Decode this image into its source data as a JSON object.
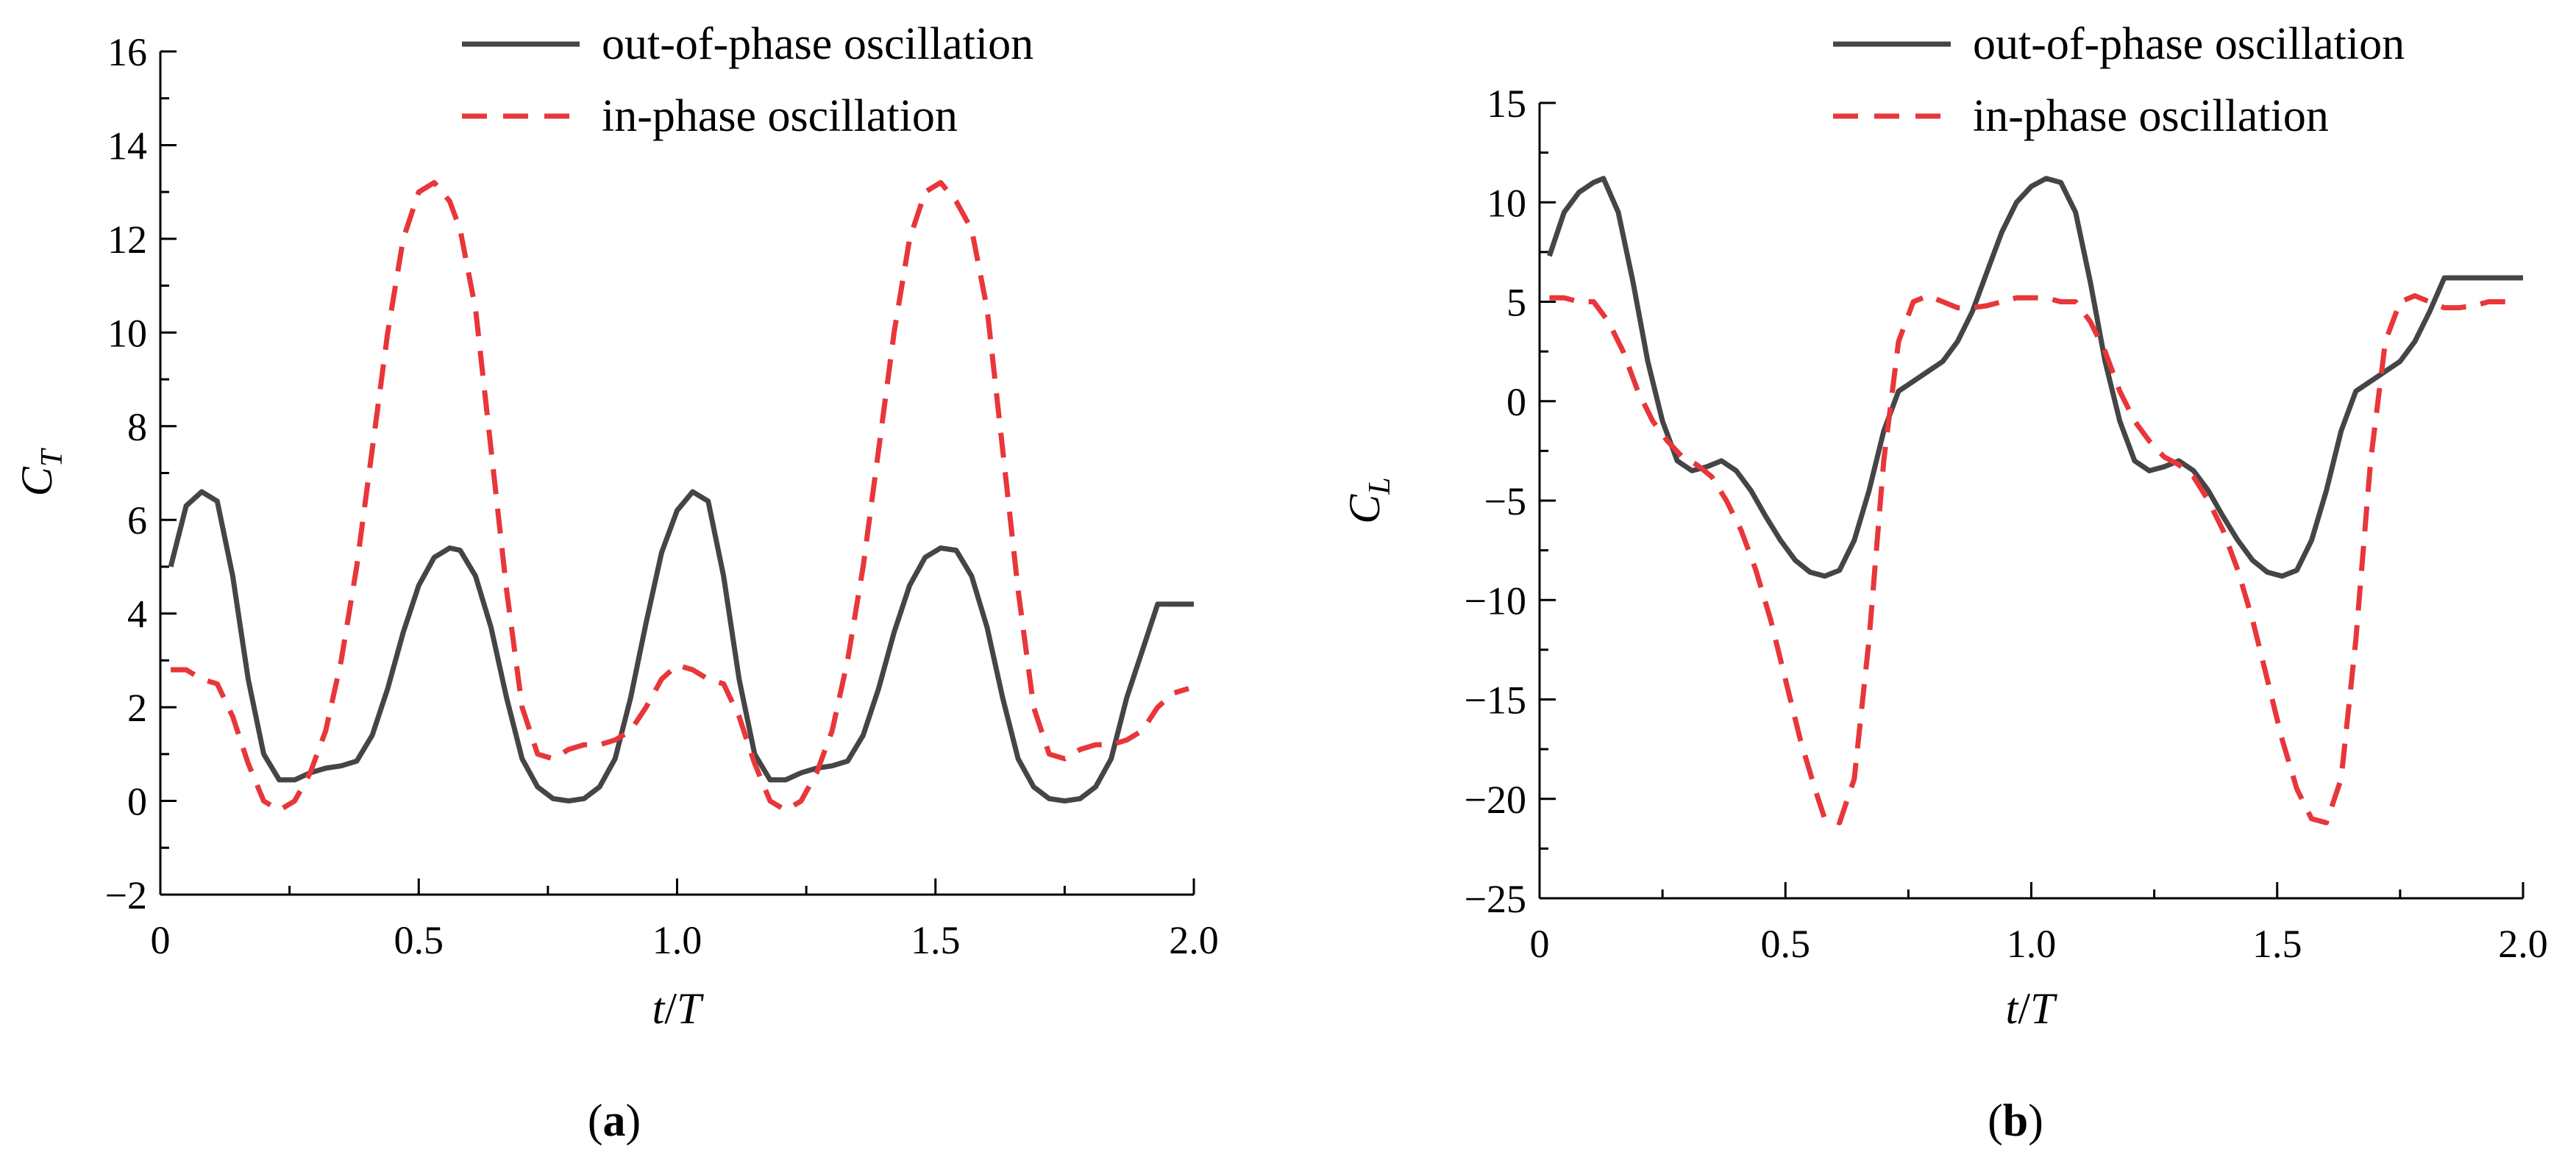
{
  "colors": {
    "out_of_phase": "#454545",
    "in_phase": "#e8363a",
    "axis": "#000000"
  },
  "chart_data": [
    {
      "type": "line",
      "panel": "a",
      "caption_paren_open": "(",
      "caption_letter": "a",
      "caption_paren_close": ")",
      "ylabel_main": "C",
      "ylabel_sub": "T",
      "xlabel_italic_1": "t",
      "xlabel_slash": "/",
      "xlabel_italic_2": "T",
      "xlim": [
        0,
        2.0
      ],
      "ylim": [
        -2,
        16
      ],
      "xticks": [
        0,
        0.5,
        1.0,
        1.5,
        2.0
      ],
      "xtick_labels": [
        "0",
        "0.5",
        "1.0",
        "1.5",
        "2.0"
      ],
      "yticks": [
        -2,
        0,
        2,
        4,
        6,
        8,
        10,
        12,
        14,
        16
      ],
      "ytick_labels": [
        "−2",
        "0",
        "2",
        "4",
        "6",
        "8",
        "10",
        "12",
        "14",
        "16"
      ],
      "legend_position": "top-right",
      "series": [
        {
          "name": "out-of-phase oscillation",
          "style": "solid",
          "x": [
            0.02,
            0.05,
            0.08,
            0.11,
            0.14,
            0.17,
            0.2,
            0.23,
            0.26,
            0.29,
            0.32,
            0.35,
            0.38,
            0.41,
            0.44,
            0.47,
            0.5,
            0.53,
            0.56,
            0.58,
            0.61,
            0.64,
            0.67,
            0.7,
            0.73,
            0.76,
            0.79,
            0.82,
            0.85,
            0.88,
            0.91,
            0.94,
            0.97,
            1.0,
            1.03,
            1.06,
            1.09,
            1.12,
            1.15,
            1.18,
            1.21,
            1.24,
            1.27,
            1.3,
            1.33,
            1.36,
            1.39,
            1.42,
            1.45,
            1.48,
            1.51,
            1.54,
            1.57,
            1.6,
            1.63,
            1.66,
            1.69,
            1.72,
            1.75,
            1.78,
            1.81,
            1.84,
            1.87,
            1.9,
            1.93,
            1.96,
            2.0
          ],
          "values": [
            5.0,
            6.3,
            6.6,
            6.4,
            4.8,
            2.6,
            1.0,
            0.45,
            0.45,
            0.6,
            0.7,
            0.75,
            0.85,
            1.4,
            2.4,
            3.6,
            4.6,
            5.2,
            5.4,
            5.35,
            4.8,
            3.7,
            2.2,
            0.9,
            0.3,
            0.05,
            0.0,
            0.05,
            0.3,
            0.9,
            2.2,
            3.8,
            5.3,
            6.2,
            6.6,
            6.4,
            4.8,
            2.6,
            1.0,
            0.45,
            0.45,
            0.6,
            0.7,
            0.75,
            0.85,
            1.4,
            2.4,
            3.6,
            4.6,
            5.2,
            5.4,
            5.35,
            4.8,
            3.7,
            2.2,
            0.9,
            0.3,
            0.05,
            0.0,
            0.05,
            0.3,
            0.9,
            2.2,
            3.2,
            4.2,
            4.2,
            4.2
          ]
        },
        {
          "name": "in-phase oscillation",
          "style": "dashed",
          "x": [
            0.02,
            0.05,
            0.08,
            0.11,
            0.14,
            0.17,
            0.2,
            0.23,
            0.26,
            0.29,
            0.32,
            0.35,
            0.38,
            0.41,
            0.44,
            0.47,
            0.5,
            0.53,
            0.56,
            0.58,
            0.61,
            0.64,
            0.67,
            0.7,
            0.73,
            0.76,
            0.79,
            0.82,
            0.85,
            0.88,
            0.91,
            0.94,
            0.97,
            1.0,
            1.03,
            1.06,
            1.09,
            1.12,
            1.15,
            1.18,
            1.21,
            1.24,
            1.27,
            1.3,
            1.33,
            1.36,
            1.39,
            1.42,
            1.45,
            1.48,
            1.51,
            1.54,
            1.57,
            1.6,
            1.63,
            1.66,
            1.69,
            1.72,
            1.75,
            1.78,
            1.81,
            1.84,
            1.87,
            1.9,
            1.93,
            1.96,
            1.99
          ],
          "values": [
            2.8,
            2.8,
            2.6,
            2.5,
            1.8,
            0.8,
            0.0,
            -0.2,
            0.0,
            0.6,
            1.5,
            3.0,
            5.0,
            7.5,
            10.0,
            12.0,
            13.0,
            13.2,
            12.8,
            12.2,
            10.5,
            7.5,
            4.5,
            2.0,
            1.0,
            0.9,
            1.1,
            1.2,
            1.2,
            1.3,
            1.5,
            2.0,
            2.6,
            2.9,
            2.8,
            2.6,
            2.5,
            1.8,
            0.8,
            0.0,
            -0.2,
            0.0,
            0.6,
            1.5,
            3.0,
            5.0,
            7.5,
            10.0,
            12.0,
            13.0,
            13.2,
            12.8,
            12.2,
            10.5,
            7.5,
            4.5,
            2.0,
            1.0,
            0.9,
            1.1,
            1.2,
            1.2,
            1.3,
            1.5,
            2.0,
            2.3,
            2.4
          ]
        }
      ]
    },
    {
      "type": "line",
      "panel": "b",
      "caption_paren_open": "(",
      "caption_letter": "b",
      "caption_paren_close": ")",
      "ylabel_main": "C",
      "ylabel_sub": "L",
      "xlabel_italic_1": "t",
      "xlabel_slash": "/",
      "xlabel_italic_2": "T",
      "xlim": [
        0,
        2.0
      ],
      "ylim": [
        -25,
        15
      ],
      "xticks": [
        0,
        0.5,
        1.0,
        1.5,
        2.0
      ],
      "xtick_labels": [
        "0",
        "0.5",
        "1.0",
        "1.5",
        "2.0"
      ],
      "yticks": [
        -25,
        -20,
        -15,
        -10,
        -5,
        0,
        5,
        10,
        15
      ],
      "ytick_labels": [
        "−25",
        "−20",
        "−15",
        "−10",
        "−5",
        "0",
        "5",
        "10",
        "15"
      ],
      "legend_position": "top-right",
      "series": [
        {
          "name": "out-of-phase oscillation",
          "style": "solid",
          "x": [
            0.02,
            0.05,
            0.08,
            0.11,
            0.13,
            0.16,
            0.19,
            0.22,
            0.25,
            0.28,
            0.31,
            0.34,
            0.37,
            0.4,
            0.43,
            0.46,
            0.49,
            0.52,
            0.55,
            0.58,
            0.61,
            0.64,
            0.67,
            0.7,
            0.73,
            0.76,
            0.79,
            0.82,
            0.85,
            0.88,
            0.91,
            0.94,
            0.97,
            1.0,
            1.03,
            1.06,
            1.09,
            1.12,
            1.15,
            1.18,
            1.21,
            1.24,
            1.27,
            1.3,
            1.33,
            1.36,
            1.39,
            1.42,
            1.45,
            1.48,
            1.51,
            1.54,
            1.57,
            1.6,
            1.63,
            1.66,
            1.69,
            1.72,
            1.75,
            1.78,
            1.81,
            1.84,
            1.87,
            1.9,
            1.93,
            1.96,
            2.0
          ],
          "values": [
            7.3,
            9.5,
            10.5,
            11.0,
            11.2,
            9.5,
            6.0,
            2.0,
            -1.0,
            -3.0,
            -3.5,
            -3.3,
            -3.0,
            -3.5,
            -4.5,
            -5.8,
            -7.0,
            -8.0,
            -8.6,
            -8.8,
            -8.5,
            -7.0,
            -4.5,
            -1.5,
            0.5,
            1.0,
            1.5,
            2.0,
            3.0,
            4.5,
            6.5,
            8.5,
            10.0,
            10.8,
            11.2,
            11.0,
            9.5,
            6.0,
            2.0,
            -1.0,
            -3.0,
            -3.5,
            -3.3,
            -3.0,
            -3.5,
            -4.5,
            -5.8,
            -7.0,
            -8.0,
            -8.6,
            -8.8,
            -8.5,
            -7.0,
            -4.5,
            -1.5,
            0.5,
            1.0,
            1.5,
            2.0,
            3.0,
            4.5,
            6.2,
            6.2,
            6.2,
            6.2,
            6.2,
            6.2
          ]
        },
        {
          "name": "in-phase oscillation",
          "style": "dashed",
          "x": [
            0.02,
            0.05,
            0.08,
            0.11,
            0.14,
            0.17,
            0.2,
            0.23,
            0.26,
            0.29,
            0.32,
            0.35,
            0.38,
            0.41,
            0.44,
            0.47,
            0.5,
            0.53,
            0.56,
            0.58,
            0.61,
            0.64,
            0.67,
            0.7,
            0.73,
            0.76,
            0.79,
            0.82,
            0.85,
            0.88,
            0.91,
            0.94,
            0.97,
            1.0,
            1.03,
            1.06,
            1.09,
            1.12,
            1.15,
            1.18,
            1.21,
            1.24,
            1.27,
            1.3,
            1.33,
            1.36,
            1.39,
            1.42,
            1.45,
            1.48,
            1.51,
            1.54,
            1.57,
            1.6,
            1.63,
            1.66,
            1.69,
            1.72,
            1.75,
            1.78,
            1.81,
            1.84,
            1.87,
            1.9,
            1.93,
            1.96,
            1.99
          ],
          "values": [
            5.2,
            5.2,
            5.0,
            5.0,
            4.0,
            2.5,
            0.5,
            -1.0,
            -2.0,
            -2.8,
            -3.2,
            -3.8,
            -5.0,
            -6.5,
            -8.5,
            -11.0,
            -14.0,
            -17.0,
            -19.5,
            -21.0,
            -21.2,
            -19.0,
            -12.0,
            -3.0,
            3.0,
            5.0,
            5.3,
            5.0,
            4.7,
            4.7,
            4.8,
            5.0,
            5.2,
            5.2,
            5.2,
            5.0,
            5.0,
            4.0,
            2.5,
            0.5,
            -1.0,
            -2.0,
            -2.8,
            -3.2,
            -3.8,
            -5.0,
            -6.5,
            -8.5,
            -11.0,
            -14.0,
            -17.0,
            -19.5,
            -21.0,
            -21.2,
            -19.0,
            -12.0,
            -3.0,
            3.0,
            5.0,
            5.3,
            5.0,
            4.7,
            4.7,
            4.8,
            5.0,
            5.0,
            5.0
          ]
        }
      ]
    }
  ]
}
